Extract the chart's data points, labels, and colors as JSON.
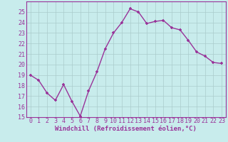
{
  "xlabel": "Windchill (Refroidissement éolien,°C)",
  "hours": [
    0,
    1,
    2,
    3,
    4,
    5,
    6,
    7,
    8,
    9,
    10,
    11,
    12,
    13,
    14,
    15,
    16,
    17,
    18,
    19,
    20,
    21,
    22,
    23
  ],
  "values": [
    19.0,
    18.5,
    17.3,
    16.6,
    18.1,
    16.5,
    15.1,
    17.5,
    19.3,
    21.5,
    23.0,
    24.0,
    25.3,
    25.0,
    23.9,
    24.1,
    24.2,
    23.5,
    23.3,
    22.3,
    21.2,
    20.8,
    20.2,
    20.1
  ],
  "line_color": "#993399",
  "marker_color": "#993399",
  "bg_color": "#c8ecec",
  "grid_color": "#aacccc",
  "spine_color": "#993399",
  "tick_color": "#993399",
  "ylim": [
    15,
    26
  ],
  "yticks": [
    15,
    16,
    17,
    18,
    19,
    20,
    21,
    22,
    23,
    24,
    25
  ],
  "xticks": [
    0,
    1,
    2,
    3,
    4,
    5,
    6,
    7,
    8,
    9,
    10,
    11,
    12,
    13,
    14,
    15,
    16,
    17,
    18,
    19,
    20,
    21,
    22,
    23
  ],
  "xlabel_fontsize": 6.5,
  "tick_fontsize": 6.0,
  "line_width": 1.0,
  "marker_size": 3.5,
  "marker_type": "+"
}
